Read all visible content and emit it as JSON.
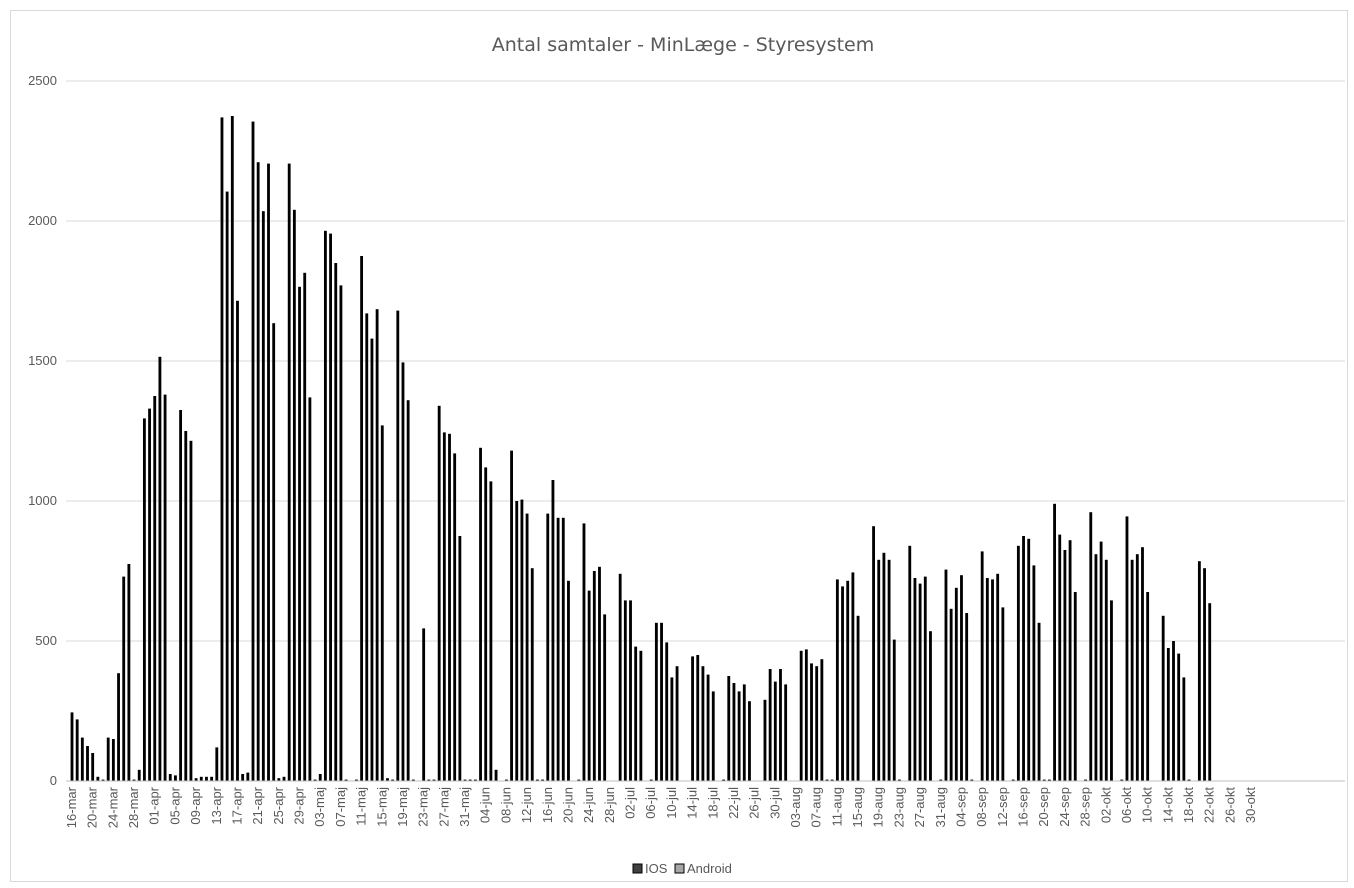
{
  "chart_data": {
    "type": "bar",
    "title": "Antal samtaler - MinLæge - Styresystem",
    "ylim": [
      0,
      2500
    ],
    "yticks": [
      0,
      500,
      1000,
      1500,
      2000,
      2500
    ],
    "grid": true,
    "legend_position": "bottom",
    "x_tick_labels": [
      "16-mar",
      "20-mar",
      "24-mar",
      "28-mar",
      "01-apr",
      "05-apr",
      "09-apr",
      "13-apr",
      "17-apr",
      "21-apr",
      "25-apr",
      "29-apr",
      "03-maj",
      "07-maj",
      "11-maj",
      "15-maj",
      "19-maj",
      "23-maj",
      "27-maj",
      "31-maj",
      "04-jun",
      "08-jun",
      "12-jun",
      "16-jun",
      "20-jun",
      "24-jun",
      "28-jun",
      "02-jul",
      "06-jul",
      "10-jul",
      "14-jul",
      "18-jul",
      "22-jul",
      "26-jul",
      "30-jul",
      "03-aug",
      "07-aug",
      "11-aug",
      "15-aug",
      "19-aug",
      "23-aug",
      "27-aug",
      "31-aug",
      "04-sep",
      "08-sep",
      "12-sep",
      "16-sep",
      "20-sep",
      "24-sep",
      "28-sep",
      "02-okt",
      "06-okt",
      "10-okt",
      "14-okt",
      "18-okt",
      "22-okt",
      "26-okt",
      "30-okt"
    ],
    "x_start": "16-mar",
    "x_end": "30-okt",
    "series": [
      {
        "name": "IOS",
        "color": "#404040"
      },
      {
        "name": "Android",
        "color": "#a6a6a6"
      }
    ],
    "values": [
      245,
      220,
      155,
      125,
      100,
      15,
      5,
      155,
      150,
      385,
      730,
      775,
      5,
      40,
      1295,
      1330,
      1375,
      1515,
      1380,
      25,
      20,
      1325,
      1250,
      1215,
      10,
      15,
      15,
      15,
      120,
      2370,
      2105,
      2375,
      1715,
      25,
      30,
      2355,
      2210,
      2035,
      2205,
      1635,
      10,
      15,
      2205,
      2040,
      1765,
      1815,
      1370,
      5,
      25,
      1965,
      1955,
      1850,
      1770,
      5,
      0,
      5,
      1875,
      1670,
      1580,
      1685,
      1270,
      10,
      5,
      1680,
      1495,
      1360,
      5,
      0,
      545,
      5,
      5,
      1340,
      1245,
      1240,
      1170,
      875,
      5,
      5,
      5,
      1190,
      1120,
      1070,
      40,
      0,
      5,
      1180,
      1000,
      1005,
      955,
      760,
      5,
      5,
      955,
      1075,
      940,
      940,
      715,
      0,
      5,
      920,
      680,
      750,
      765,
      595,
      0,
      0,
      740,
      645,
      645,
      480,
      465,
      0,
      5,
      565,
      565,
      495,
      370,
      410,
      0,
      0,
      445,
      450,
      410,
      380,
      320,
      0,
      5,
      375,
      350,
      320,
      345,
      285,
      0,
      0,
      290,
      400,
      355,
      400,
      345,
      0,
      0,
      465,
      470,
      420,
      410,
      435,
      5,
      5,
      720,
      695,
      715,
      745,
      590,
      0,
      0,
      910,
      790,
      815,
      790,
      505,
      5,
      0,
      840,
      725,
      705,
      730,
      535,
      0,
      5,
      755,
      615,
      690,
      735,
      600,
      5,
      0,
      820,
      725,
      720,
      740,
      620,
      0,
      5,
      840,
      875,
      865,
      770,
      565,
      5,
      5,
      990,
      880,
      825,
      860,
      675,
      0,
      5,
      960,
      810,
      855,
      790,
      645,
      0,
      5,
      945,
      790,
      810,
      835,
      675,
      0,
      0,
      590,
      475,
      500,
      455,
      370,
      5,
      0,
      785,
      760,
      635,
      0,
      0,
      0,
      0,
      0,
      0,
      0,
      0,
      0,
      0,
      0,
      0,
      0,
      0,
      0,
      0,
      0,
      0,
      0,
      0,
      0,
      0,
      0,
      0,
      0
    ]
  }
}
